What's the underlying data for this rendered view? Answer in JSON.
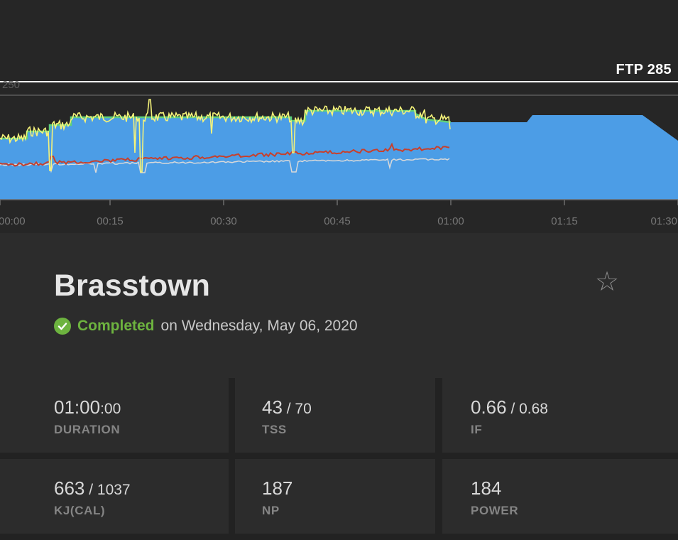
{
  "chart": {
    "ftp_label": "FTP 285",
    "y_tick_label": "250",
    "x_tick_labels": [
      "00:00",
      "00:15",
      "00:30",
      "00:45",
      "01:00",
      "01:15",
      "01:30"
    ],
    "colors": {
      "background": "#262626",
      "planned_area": "#4c9de6",
      "power_line": "#f5f37a",
      "target_line": "#5fd07a",
      "heart_rate_line": "#c7402c",
      "cadence_line": "#d9d9d9",
      "ftp_line": "#ffffff"
    }
  },
  "workout": {
    "title": "Brasstown",
    "status": "Completed",
    "date": "on Wednesday, May 06, 2020"
  },
  "stats": [
    {
      "value": "01:00",
      "value_small": ":00",
      "label": "DURATION"
    },
    {
      "value": "43",
      "value_small": " / 70",
      "label": "TSS"
    },
    {
      "value": "0.66",
      "value_small": " / 0.68",
      "label": "IF"
    },
    {
      "value": "663",
      "value_small": " / 1037",
      "label": "KJ(CAL)"
    },
    {
      "value": "187",
      "value_small": "",
      "label": "NP"
    },
    {
      "value": "184",
      "value_small": "",
      "label": "POWER"
    }
  ]
}
